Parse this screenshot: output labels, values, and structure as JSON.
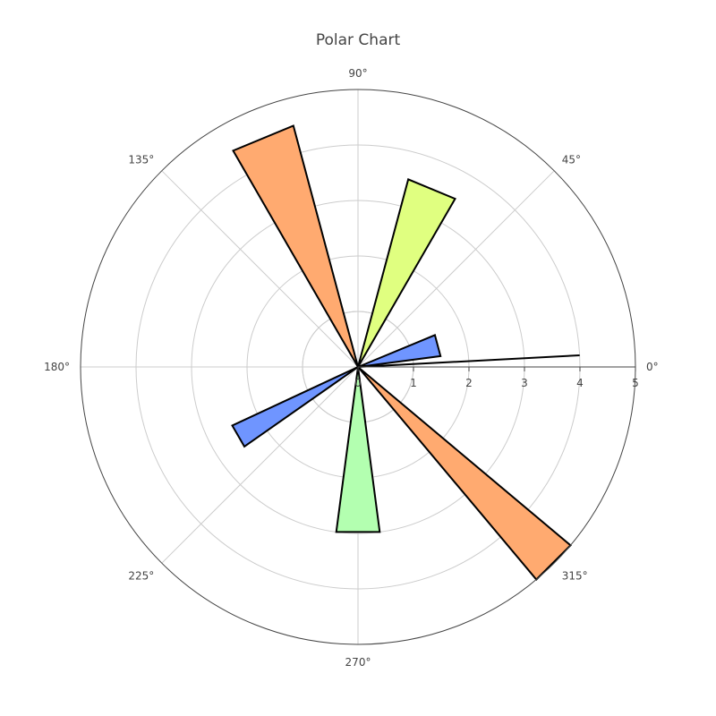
{
  "chart_data": {
    "type": "barpolar",
    "title": "Polar Chart",
    "angular_axis": {
      "tick_labels": [
        "0°",
        "45°",
        "90°",
        "135°",
        "180°",
        "225°",
        "270°",
        "315°"
      ],
      "tick_angles": [
        0,
        45,
        90,
        135,
        180,
        225,
        270,
        315
      ],
      "direction": "counterclockwise",
      "rotation": 0
    },
    "radial_axis": {
      "range": [
        0,
        5
      ],
      "tick_labels": [
        "0",
        "1",
        "2",
        "3",
        "4",
        "5"
      ],
      "tick_values": [
        0,
        1,
        2,
        3,
        4,
        5
      ],
      "angle": 0
    },
    "grid": true,
    "bars": [
      {
        "theta": 3,
        "r": 4.0,
        "width": 0,
        "color": "#000000"
      },
      {
        "theta": 15,
        "r": 1.5,
        "width": 15,
        "color": "#6f95ff"
      },
      {
        "theta": 67.5,
        "r": 3.5,
        "width": 15,
        "color": "#e0ff80"
      },
      {
        "theta": 112.5,
        "r": 4.5,
        "width": 15,
        "color": "#ffaa70"
      },
      {
        "theta": 210,
        "r": 2.5,
        "width": 10,
        "color": "#6f95ff"
      },
      {
        "theta": 270,
        "r": 3.0,
        "width": 15,
        "color": "#b3ffb0"
      },
      {
        "theta": 315,
        "r": 5.0,
        "width": 10,
        "color": "#ffaa70"
      }
    ]
  }
}
